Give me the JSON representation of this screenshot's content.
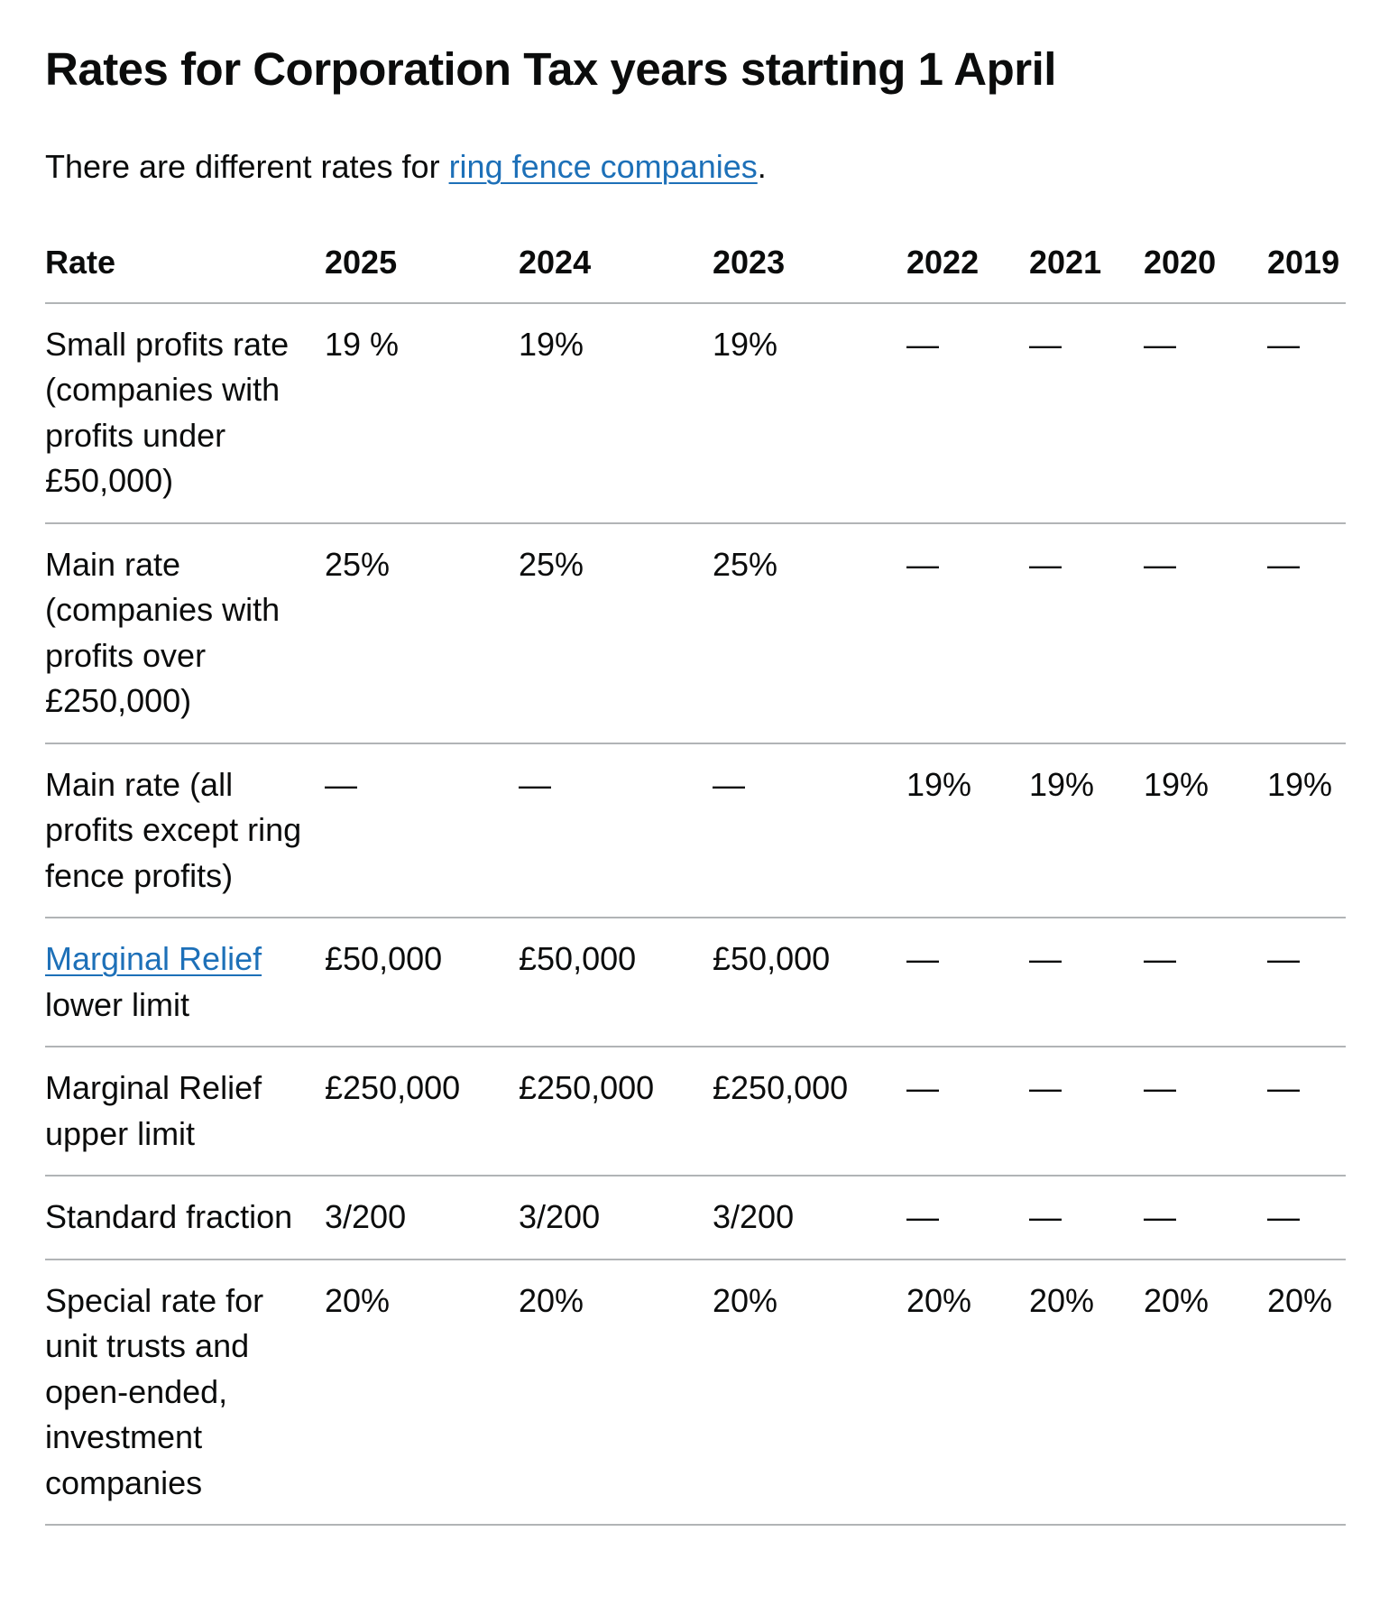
{
  "heading": "Rates for Corporation Tax years starting 1 April",
  "intro": {
    "text_before": "There are different rates for ",
    "link_text": "ring fence companies",
    "text_after": "."
  },
  "table": {
    "headers": [
      "Rate",
      "2025",
      "2024",
      "2023",
      "2022",
      "2021",
      "2020",
      "2019"
    ],
    "rows": [
      {
        "label": "Small profits rate (companies with profits under £50,000)",
        "values": [
          "19 %",
          "19%",
          "19%",
          "—",
          "—",
          "—",
          "—"
        ]
      },
      {
        "label": "Main rate (companies with profits over £250,000)",
        "values": [
          "25%",
          "25%",
          "25%",
          "—",
          "—",
          "—",
          "—"
        ]
      },
      {
        "label": "Main rate (all profits except ring fence profits)",
        "values": [
          "—",
          "—",
          "—",
          "19%",
          "19%",
          "19%",
          "19%"
        ]
      },
      {
        "label_link": "Marginal Relief",
        "label_rest": " lower limit",
        "values": [
          "£50,000",
          "£50,000",
          "£50,000",
          "—",
          "—",
          "—",
          "—"
        ]
      },
      {
        "label": "Marginal Relief upper limit",
        "values": [
          "£250,000",
          "£250,000",
          "£250,000",
          "—",
          "—",
          "—",
          "—"
        ]
      },
      {
        "label": "Standard fraction",
        "values": [
          "3/200",
          "3/200",
          "3/200",
          "—",
          "—",
          "—",
          "—"
        ]
      },
      {
        "label": "Special rate for unit trusts and open-ended, investment companies",
        "values": [
          "20%",
          "20%",
          "20%",
          "20%",
          "20%",
          "20%",
          "20%"
        ]
      }
    ]
  },
  "colors": {
    "text": "#0b0c0c",
    "link": "#1d70b8",
    "border": "#b1b4b6"
  }
}
